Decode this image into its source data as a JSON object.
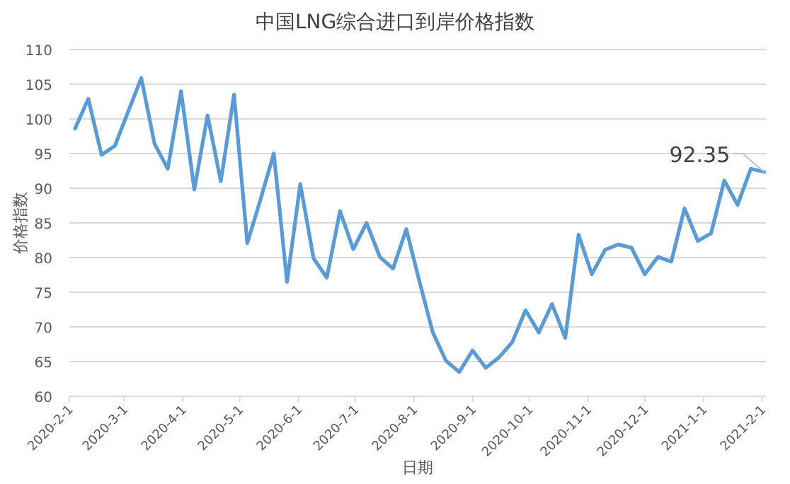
{
  "chart_data": {
    "type": "line",
    "title": "中国LNG综合进口到岸价格指数",
    "xlabel": "日期",
    "ylabel": "价格指数",
    "x": [
      "2020-02-04",
      "2020-02-11",
      "2020-02-18",
      "2020-02-25",
      "2020-03-03",
      "2020-03-10",
      "2020-03-17",
      "2020-03-24",
      "2020-03-31",
      "2020-04-07",
      "2020-04-14",
      "2020-04-21",
      "2020-04-28",
      "2020-05-05",
      "2020-05-12",
      "2020-05-19",
      "2020-05-26",
      "2020-06-02",
      "2020-06-09",
      "2020-06-16",
      "2020-06-23",
      "2020-06-30",
      "2020-07-07",
      "2020-07-14",
      "2020-07-21",
      "2020-07-28",
      "2020-08-04",
      "2020-08-11",
      "2020-08-18",
      "2020-08-25",
      "2020-09-01",
      "2020-09-08",
      "2020-09-15",
      "2020-09-22",
      "2020-09-29",
      "2020-10-06",
      "2020-10-13",
      "2020-10-20",
      "2020-10-27",
      "2020-11-03",
      "2020-11-10",
      "2020-11-17",
      "2020-11-24",
      "2020-12-01",
      "2020-12-08",
      "2020-12-15",
      "2020-12-22",
      "2020-12-29",
      "2021-01-05",
      "2021-01-12",
      "2021-01-19",
      "2021-01-26",
      "2021-02-02"
    ],
    "series": [
      {
        "color": "#5b9bd5",
        "values": [
          98.6,
          102.9,
          94.8,
          96.1,
          101.0,
          105.9,
          96.4,
          92.8,
          104.0,
          89.8,
          100.5,
          91.0,
          103.5,
          82.1,
          88.4,
          95.0,
          76.5,
          90.6,
          79.9,
          77.1,
          86.7,
          81.2,
          85.0,
          80.1,
          78.4,
          84.1,
          76.5,
          69.2,
          65.1,
          63.5,
          66.6,
          64.1,
          65.6,
          67.8,
          72.4,
          69.2,
          73.3,
          68.4,
          83.3,
          77.6,
          81.1,
          81.9,
          81.4,
          77.6,
          80.1,
          79.4,
          87.1,
          82.4,
          83.5,
          91.1,
          87.6,
          92.8,
          92.35
        ]
      }
    ],
    "xlim": [
      "2020-02-01",
      "2021-02-03"
    ],
    "xticks": [
      {
        "value": "2020-02-01",
        "label": "2020-2-1"
      },
      {
        "value": "2020-03-01",
        "label": "2020-3-1"
      },
      {
        "value": "2020-04-01",
        "label": "2020-4-1"
      },
      {
        "value": "2020-05-01",
        "label": "2020-5-1"
      },
      {
        "value": "2020-06-01",
        "label": "2020-6-1"
      },
      {
        "value": "2020-07-01",
        "label": "2020-7-1"
      },
      {
        "value": "2020-08-01",
        "label": "2020-8-1"
      },
      {
        "value": "2020-09-01",
        "label": "2020-9-1"
      },
      {
        "value": "2020-10-01",
        "label": "2020-10-1"
      },
      {
        "value": "2020-11-01",
        "label": "2020-11-1"
      },
      {
        "value": "2020-12-01",
        "label": "2020-12-1"
      },
      {
        "value": "2021-01-01",
        "label": "2021-1-1"
      },
      {
        "value": "2021-02-01",
        "label": "2021-2-1"
      }
    ],
    "ylim": [
      60,
      110
    ],
    "yticks": [
      60,
      65,
      70,
      75,
      80,
      85,
      90,
      95,
      100,
      105,
      110
    ],
    "grid": "y",
    "annotations": [
      {
        "text": "92.35",
        "x": "2021-02-02",
        "y": 92.35
      }
    ]
  }
}
